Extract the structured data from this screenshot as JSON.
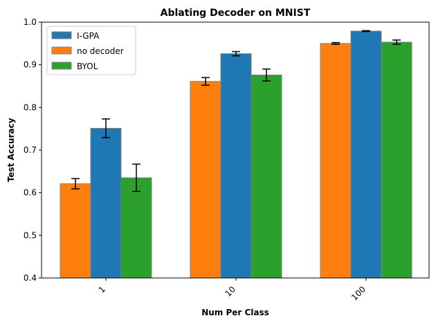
{
  "chart_data": {
    "type": "bar",
    "title": "Ablating Decoder on MNIST",
    "xlabel": "Num Per Class",
    "ylabel": "Test Accuracy",
    "categories": [
      "1",
      "10",
      "100"
    ],
    "ylim": [
      0.4,
      1.0
    ],
    "yticks": [
      "0.4",
      "0.5",
      "0.6",
      "0.7",
      "0.8",
      "0.9",
      "1.0"
    ],
    "legend_position": "top-left",
    "grid": false,
    "series": [
      {
        "name": "no decoder",
        "color": "#ff7f0e",
        "values": [
          0.621,
          0.861,
          0.95
        ],
        "errors": [
          0.012,
          0.009,
          0.002
        ]
      },
      {
        "name": "I-GPA",
        "color": "#1f77b4",
        "values": [
          0.751,
          0.926,
          0.979
        ],
        "errors": [
          0.022,
          0.005,
          0.001
        ]
      },
      {
        "name": "BYOL",
        "color": "#2ca02c",
        "values": [
          0.635,
          0.876,
          0.953
        ],
        "errors": [
          0.032,
          0.014,
          0.005
        ]
      }
    ],
    "legend_order": [
      "I-GPA",
      "no decoder",
      "BYOL"
    ]
  }
}
